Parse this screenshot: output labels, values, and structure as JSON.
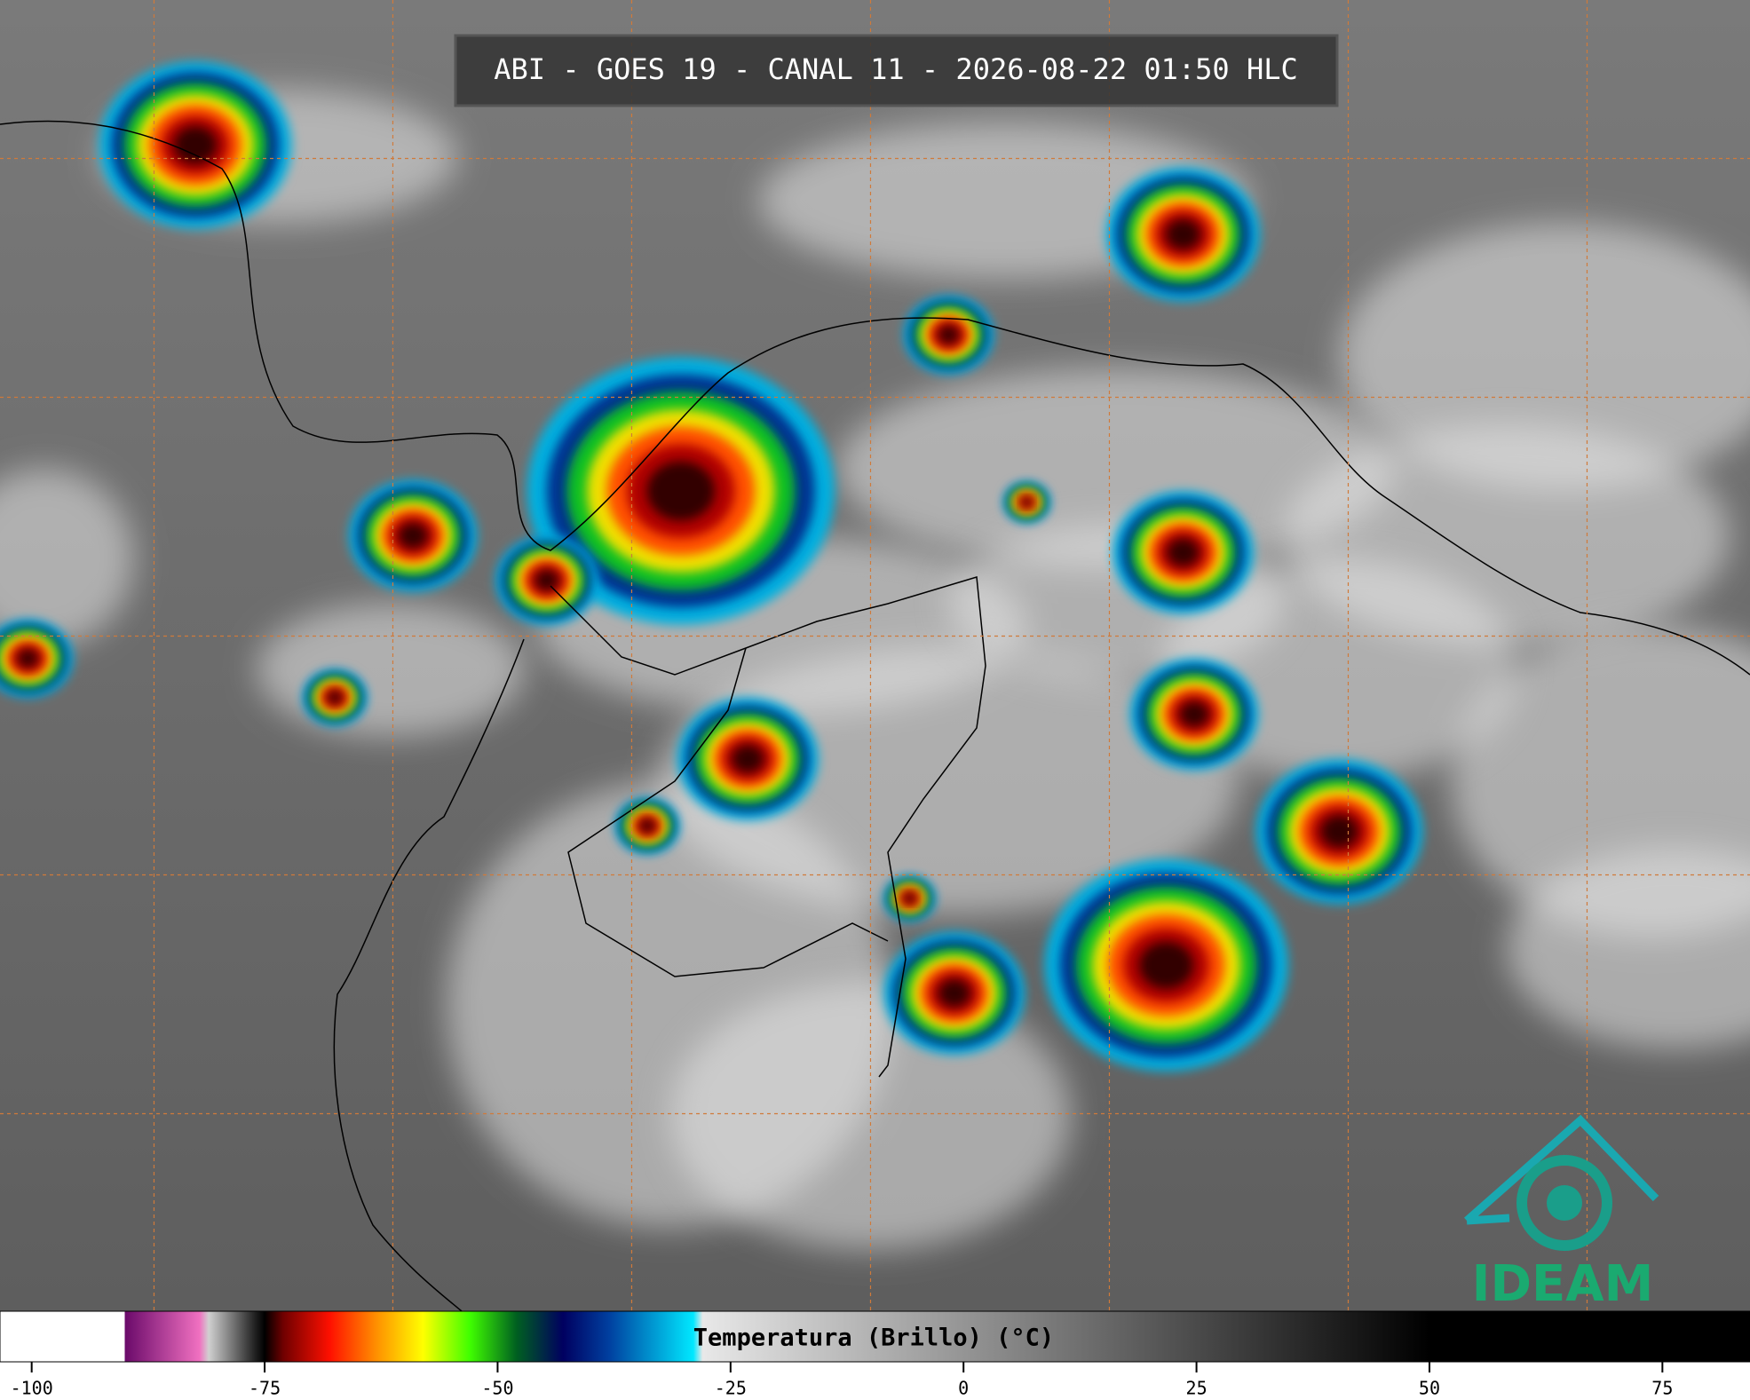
{
  "title": "ABI - GOES 19 - CANAL 11 - 2026-08-22 01:50 HLC",
  "colorbar": {
    "label": "Temperatura (Brillo) (°C)",
    "range": [
      -103.4,
      84.4
    ],
    "ticks": [
      -100,
      -75,
      -50,
      -25,
      0,
      25,
      50,
      75
    ],
    "stops": [
      {
        "value": -103.4,
        "color": "#ffffff"
      },
      {
        "value": -90,
        "color": "#ffffff"
      },
      {
        "value": -90,
        "color": "#6a0a6a"
      },
      {
        "value": -82,
        "color": "#f070c0"
      },
      {
        "value": -81,
        "color": "#d0d0d0"
      },
      {
        "value": -76,
        "color": "#202020"
      },
      {
        "value": -75,
        "color": "#000000"
      },
      {
        "value": -73,
        "color": "#700000"
      },
      {
        "value": -68,
        "color": "#ff1000"
      },
      {
        "value": -63,
        "color": "#ff9000"
      },
      {
        "value": -58,
        "color": "#ffff00"
      },
      {
        "value": -53,
        "color": "#40ff00"
      },
      {
        "value": -48,
        "color": "#006020"
      },
      {
        "value": -43,
        "color": "#000060"
      },
      {
        "value": -38,
        "color": "#0040a0"
      },
      {
        "value": -29,
        "color": "#00e8ff"
      },
      {
        "value": -28,
        "color": "#e8e8e8"
      },
      {
        "value": 50,
        "color": "#000000"
      },
      {
        "value": 84.4,
        "color": "#000000"
      }
    ]
  },
  "logo": "IDEAM"
}
